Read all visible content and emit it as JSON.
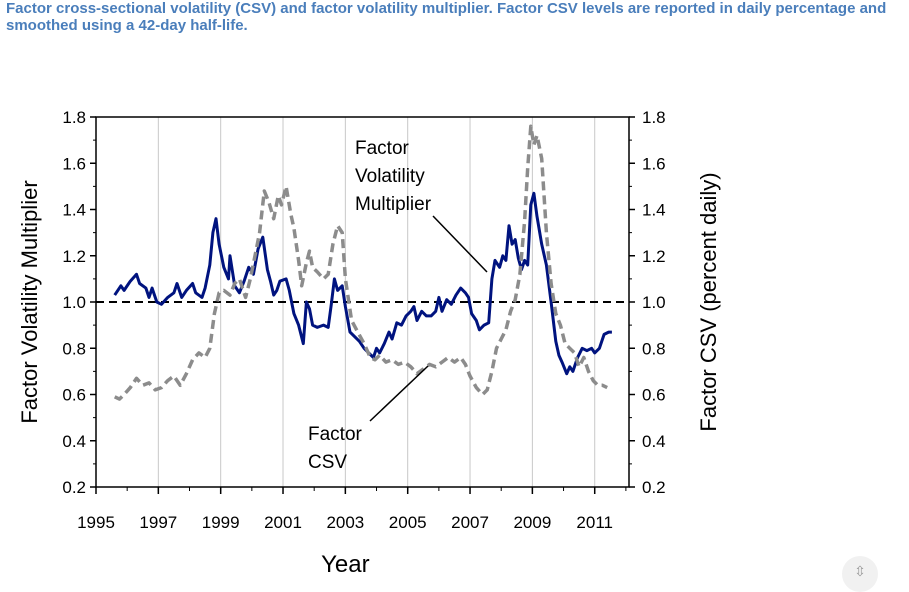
{
  "caption": "Factor cross-sectional volatility (CSV) and factor volatility multiplier. Factor CSV levels are reported in daily percentage and smoothed using a 42-day half-life.",
  "chart_data": {
    "type": "line",
    "title": "",
    "xlabel": "Year",
    "ylabel": "Factor Volatility Multiplier",
    "ylabel_right": "Factor CSV (percent daily)",
    "xlim": [
      1995,
      2012.1
    ],
    "ylim": [
      0.2,
      1.8
    ],
    "ylim_right": [
      0.2,
      1.8
    ],
    "x_ticks": [
      "1995",
      "1997",
      "1999",
      "2001",
      "2003",
      "2005",
      "2007",
      "2009",
      "2011"
    ],
    "y_ticks": [
      "0.2",
      "0.4",
      "0.6",
      "0.8",
      "1.0",
      "1.2",
      "1.4",
      "1.6",
      "1.8"
    ],
    "y_ticks_right": [
      "0.2",
      "0.4",
      "0.6",
      "0.8",
      "1.0",
      "1.2",
      "1.4",
      "1.6",
      "1.8"
    ],
    "grid": "vertical",
    "reference_line": {
      "y": 1.0,
      "style": "dashed"
    },
    "annotations": [
      {
        "lines": [
          "Factor",
          "Volatility",
          "Multiplier"
        ],
        "target": "Factor Volatility Multiplier"
      },
      {
        "lines": [
          "Factor",
          "CSV"
        ],
        "target": "Factor CSV"
      }
    ],
    "series": [
      {
        "name": "Factor Volatility Multiplier",
        "axis": "left",
        "color": "#00137f",
        "style": "solid",
        "points": [
          [
            1995.6,
            1.03
          ],
          [
            1995.8,
            1.07
          ],
          [
            1995.9,
            1.05
          ],
          [
            1996.1,
            1.09
          ],
          [
            1996.3,
            1.12
          ],
          [
            1996.4,
            1.08
          ],
          [
            1996.6,
            1.06
          ],
          [
            1996.7,
            1.02
          ],
          [
            1996.8,
            1.06
          ],
          [
            1996.95,
            1.0
          ],
          [
            1997.1,
            0.99
          ],
          [
            1997.3,
            1.02
          ],
          [
            1997.5,
            1.04
          ],
          [
            1997.6,
            1.08
          ],
          [
            1997.75,
            1.02
          ],
          [
            1997.9,
            1.05
          ],
          [
            1998.1,
            1.08
          ],
          [
            1998.2,
            1.04
          ],
          [
            1998.4,
            1.02
          ],
          [
            1998.5,
            1.06
          ],
          [
            1998.65,
            1.16
          ],
          [
            1998.75,
            1.3
          ],
          [
            1998.85,
            1.36
          ],
          [
            1998.95,
            1.25
          ],
          [
            1999.1,
            1.15
          ],
          [
            1999.25,
            1.1
          ],
          [
            1999.3,
            1.2
          ],
          [
            1999.45,
            1.07
          ],
          [
            1999.6,
            1.04
          ],
          [
            1999.75,
            1.09
          ],
          [
            1999.9,
            1.15
          ],
          [
            2000.05,
            1.12
          ],
          [
            2000.2,
            1.23
          ],
          [
            2000.35,
            1.28
          ],
          [
            2000.5,
            1.14
          ],
          [
            2000.6,
            1.09
          ],
          [
            2000.7,
            1.03
          ],
          [
            2000.8,
            1.05
          ],
          [
            2000.9,
            1.09
          ],
          [
            2001.1,
            1.1
          ],
          [
            2001.2,
            1.05
          ],
          [
            2001.35,
            0.95
          ],
          [
            2001.5,
            0.9
          ],
          [
            2001.65,
            0.82
          ],
          [
            2001.75,
            1.0
          ],
          [
            2001.85,
            0.97
          ],
          [
            2001.95,
            0.9
          ],
          [
            2002.1,
            0.89
          ],
          [
            2002.3,
            0.9
          ],
          [
            2002.45,
            0.89
          ],
          [
            2002.55,
            0.99
          ],
          [
            2002.65,
            1.1
          ],
          [
            2002.75,
            1.05
          ],
          [
            2002.9,
            1.07
          ],
          [
            2003.0,
            0.98
          ],
          [
            2003.15,
            0.87
          ],
          [
            2003.3,
            0.85
          ],
          [
            2003.45,
            0.83
          ],
          [
            2003.6,
            0.8
          ],
          [
            2003.75,
            0.78
          ],
          [
            2003.9,
            0.76
          ],
          [
            2004.0,
            0.8
          ],
          [
            2004.1,
            0.78
          ],
          [
            2004.25,
            0.82
          ],
          [
            2004.4,
            0.87
          ],
          [
            2004.5,
            0.84
          ],
          [
            2004.65,
            0.91
          ],
          [
            2004.8,
            0.9
          ],
          [
            2004.95,
            0.94
          ],
          [
            2005.1,
            0.96
          ],
          [
            2005.2,
            0.98
          ],
          [
            2005.3,
            0.92
          ],
          [
            2005.45,
            0.96
          ],
          [
            2005.6,
            0.94
          ],
          [
            2005.75,
            0.94
          ],
          [
            2005.9,
            0.96
          ],
          [
            2006.0,
            1.02
          ],
          [
            2006.1,
            0.96
          ],
          [
            2006.25,
            1.01
          ],
          [
            2006.4,
            0.99
          ],
          [
            2006.55,
            1.03
          ],
          [
            2006.7,
            1.06
          ],
          [
            2006.85,
            1.04
          ],
          [
            2006.95,
            1.02
          ],
          [
            2007.05,
            0.95
          ],
          [
            2007.2,
            0.92
          ],
          [
            2007.3,
            0.88
          ],
          [
            2007.45,
            0.9
          ],
          [
            2007.6,
            0.91
          ],
          [
            2007.7,
            1.1
          ],
          [
            2007.8,
            1.18
          ],
          [
            2007.95,
            1.15
          ],
          [
            2008.05,
            1.2
          ],
          [
            2008.15,
            1.18
          ],
          [
            2008.25,
            1.33
          ],
          [
            2008.35,
            1.25
          ],
          [
            2008.45,
            1.27
          ],
          [
            2008.55,
            1.19
          ],
          [
            2008.65,
            1.14
          ],
          [
            2008.75,
            1.18
          ],
          [
            2008.85,
            1.16
          ],
          [
            2008.95,
            1.42
          ],
          [
            2009.05,
            1.47
          ],
          [
            2009.15,
            1.37
          ],
          [
            2009.3,
            1.25
          ],
          [
            2009.45,
            1.16
          ],
          [
            2009.6,
            1.0
          ],
          [
            2009.75,
            0.83
          ],
          [
            2009.85,
            0.77
          ],
          [
            2009.95,
            0.74
          ],
          [
            2010.1,
            0.69
          ],
          [
            2010.2,
            0.72
          ],
          [
            2010.3,
            0.7
          ],
          [
            2010.45,
            0.76
          ],
          [
            2010.6,
            0.8
          ],
          [
            2010.75,
            0.79
          ],
          [
            2010.9,
            0.8
          ],
          [
            2011.0,
            0.78
          ],
          [
            2011.15,
            0.8
          ],
          [
            2011.3,
            0.86
          ],
          [
            2011.45,
            0.87
          ],
          [
            2011.55,
            0.87
          ]
        ]
      },
      {
        "name": "Factor CSV",
        "axis": "right",
        "color": "#8c8c8c",
        "style": "dashed",
        "points": [
          [
            1995.6,
            0.59
          ],
          [
            1995.75,
            0.58
          ],
          [
            1995.9,
            0.6
          ],
          [
            1996.1,
            0.63
          ],
          [
            1996.3,
            0.67
          ],
          [
            1996.5,
            0.64
          ],
          [
            1996.7,
            0.65
          ],
          [
            1996.9,
            0.62
          ],
          [
            1997.1,
            0.63
          ],
          [
            1997.3,
            0.66
          ],
          [
            1997.5,
            0.68
          ],
          [
            1997.7,
            0.64
          ],
          [
            1997.9,
            0.69
          ],
          [
            1998.1,
            0.75
          ],
          [
            1998.3,
            0.78
          ],
          [
            1998.5,
            0.76
          ],
          [
            1998.65,
            0.8
          ],
          [
            1998.8,
            0.95
          ],
          [
            1998.95,
            1.04
          ],
          [
            1999.1,
            1.05
          ],
          [
            1999.3,
            1.03
          ],
          [
            1999.45,
            1.08
          ],
          [
            1999.6,
            1.1
          ],
          [
            1999.8,
            1.02
          ],
          [
            1999.95,
            1.1
          ],
          [
            2000.1,
            1.2
          ],
          [
            2000.25,
            1.3
          ],
          [
            2000.4,
            1.48
          ],
          [
            2000.55,
            1.43
          ],
          [
            2000.7,
            1.36
          ],
          [
            2000.85,
            1.46
          ],
          [
            2000.95,
            1.42
          ],
          [
            2001.1,
            1.5
          ],
          [
            2001.25,
            1.38
          ],
          [
            2001.35,
            1.32
          ],
          [
            2001.5,
            1.18
          ],
          [
            2001.6,
            1.07
          ],
          [
            2001.75,
            1.17
          ],
          [
            2001.85,
            1.22
          ],
          [
            2001.95,
            1.15
          ],
          [
            2002.1,
            1.13
          ],
          [
            2002.3,
            1.1
          ],
          [
            2002.45,
            1.12
          ],
          [
            2002.6,
            1.25
          ],
          [
            2002.75,
            1.33
          ],
          [
            2002.9,
            1.3
          ],
          [
            2003.0,
            1.1
          ],
          [
            2003.2,
            0.92
          ],
          [
            2003.4,
            0.87
          ],
          [
            2003.6,
            0.82
          ],
          [
            2003.8,
            0.76
          ],
          [
            2003.95,
            0.75
          ],
          [
            2004.1,
            0.77
          ],
          [
            2004.3,
            0.74
          ],
          [
            2004.5,
            0.75
          ],
          [
            2004.7,
            0.73
          ],
          [
            2004.9,
            0.74
          ],
          [
            2005.1,
            0.72
          ],
          [
            2005.3,
            0.69
          ],
          [
            2005.5,
            0.71
          ],
          [
            2005.7,
            0.73
          ],
          [
            2005.9,
            0.72
          ],
          [
            2006.1,
            0.74
          ],
          [
            2006.3,
            0.76
          ],
          [
            2006.5,
            0.74
          ],
          [
            2006.7,
            0.76
          ],
          [
            2006.85,
            0.73
          ],
          [
            2007.0,
            0.68
          ],
          [
            2007.2,
            0.63
          ],
          [
            2007.4,
            0.6
          ],
          [
            2007.55,
            0.62
          ],
          [
            2007.7,
            0.7
          ],
          [
            2007.85,
            0.8
          ],
          [
            2008.0,
            0.84
          ],
          [
            2008.15,
            0.88
          ],
          [
            2008.3,
            0.96
          ],
          [
            2008.45,
            1.01
          ],
          [
            2008.6,
            1.12
          ],
          [
            2008.75,
            1.35
          ],
          [
            2008.85,
            1.58
          ],
          [
            2008.95,
            1.76
          ],
          [
            2009.05,
            1.68
          ],
          [
            2009.15,
            1.72
          ],
          [
            2009.3,
            1.62
          ],
          [
            2009.45,
            1.3
          ],
          [
            2009.6,
            1.08
          ],
          [
            2009.75,
            0.95
          ],
          [
            2009.9,
            0.9
          ],
          [
            2010.05,
            0.82
          ],
          [
            2010.2,
            0.8
          ],
          [
            2010.35,
            0.78
          ],
          [
            2010.5,
            0.72
          ],
          [
            2010.65,
            0.76
          ],
          [
            2010.8,
            0.7
          ],
          [
            2010.95,
            0.66
          ],
          [
            2011.1,
            0.64
          ],
          [
            2011.25,
            0.64
          ],
          [
            2011.4,
            0.63
          ]
        ]
      }
    ]
  },
  "ui": {
    "scroll_button_glyph": "⇳"
  }
}
